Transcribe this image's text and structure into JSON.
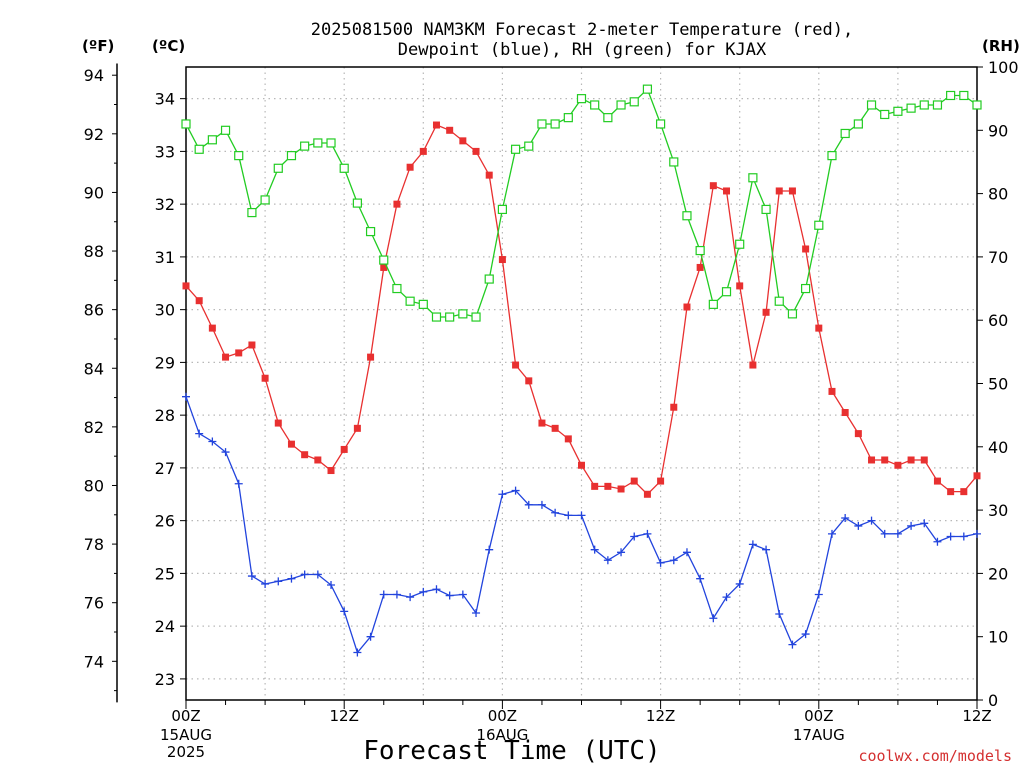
{
  "header": {
    "title_line1": "2025081500 NAM3KM Forecast 2-meter Temperature (red),",
    "title_line2": "Dewpoint (blue), RH (green) for KJAX",
    "unit_f": "(ºF)",
    "unit_c": "(ºC)",
    "unit_rh": "(RH)"
  },
  "footer": {
    "xlabel": "Forecast Time (UTC)",
    "credit": "coolwx.com/models"
  },
  "chart_data": {
    "type": "line",
    "title": "2025081500 NAM3KM Forecast 2-meter Temperature (red), Dewpoint (blue), RH (green) for KJAX",
    "xlabel": "Forecast Time (UTC)",
    "x_unit": "forecast hour",
    "x_range": [
      0,
      60
    ],
    "x_ticks": [
      {
        "hour": 0,
        "label": "00Z",
        "date": "15AUG",
        "year": "2025"
      },
      {
        "hour": 12,
        "label": "12Z",
        "date": "",
        "year": ""
      },
      {
        "hour": 24,
        "label": "00Z",
        "date": "16AUG",
        "year": ""
      },
      {
        "hour": 36,
        "label": "12Z",
        "date": "",
        "year": ""
      },
      {
        "hour": 48,
        "label": "00Z",
        "date": "17AUG",
        "year": ""
      },
      {
        "hour": 60,
        "label": "12Z",
        "date": "",
        "year": ""
      }
    ],
    "y_left_c": {
      "label": "(ºC)",
      "range": [
        22.6,
        34.6
      ],
      "ticks": [
        23,
        24,
        25,
        26,
        27,
        28,
        29,
        30,
        31,
        32,
        33,
        34
      ]
    },
    "y_left_f": {
      "label": "(ºF)",
      "ticks": [
        74,
        76,
        78,
        80,
        82,
        84,
        86,
        88,
        90,
        92,
        94
      ]
    },
    "y_right_rh": {
      "label": "(RH)",
      "range": [
        0,
        100
      ],
      "ticks": [
        0,
        10,
        20,
        30,
        40,
        50,
        60,
        70,
        80,
        90,
        100
      ]
    },
    "grid": true,
    "series": [
      {
        "name": "Temperature",
        "color": "#e83030",
        "marker": "filled-square",
        "axis": "celsius",
        "values": [
          30.45,
          30.17,
          29.65,
          29.1,
          29.18,
          29.33,
          28.7,
          27.85,
          27.45,
          27.25,
          27.15,
          26.95,
          27.35,
          27.75,
          29.1,
          30.8,
          32.0,
          32.7,
          33.0,
          33.5,
          33.4,
          33.2,
          33.0,
          32.55,
          30.95,
          28.95,
          28.65,
          27.85,
          27.75,
          27.55,
          27.05,
          26.65,
          26.65,
          26.6,
          26.75,
          26.5,
          26.75,
          28.15,
          30.05,
          30.8,
          32.35,
          32.25,
          30.45,
          28.95,
          29.95,
          32.25,
          32.25,
          31.15,
          29.65,
          28.45,
          28.05,
          27.65,
          27.15,
          27.15,
          27.05,
          27.15,
          27.15,
          26.75,
          26.55,
          26.55,
          26.85
        ]
      },
      {
        "name": "Dewpoint",
        "color": "#2244dd",
        "marker": "plus",
        "axis": "celsius",
        "values": [
          28.35,
          27.65,
          27.5,
          27.3,
          26.7,
          24.95,
          24.8,
          24.85,
          24.9,
          24.98,
          24.98,
          24.78,
          24.28,
          23.5,
          23.8,
          24.6,
          24.6,
          24.55,
          24.65,
          24.7,
          24.58,
          24.6,
          24.25,
          25.45,
          26.5,
          26.57,
          26.3,
          26.3,
          26.15,
          26.1,
          26.1,
          25.45,
          25.25,
          25.4,
          25.7,
          25.75,
          25.2,
          25.25,
          25.4,
          24.9,
          24.15,
          24.55,
          24.8,
          25.55,
          25.45,
          24.23,
          23.65,
          23.85,
          24.6,
          25.75,
          26.05,
          25.9,
          26.0,
          25.75,
          25.75,
          25.9,
          25.95,
          25.6,
          25.7,
          25.7,
          25.75
        ]
      },
      {
        "name": "RH",
        "color": "#22cc22",
        "marker": "open-square",
        "axis": "rh",
        "values": [
          91,
          87,
          88.5,
          90,
          86,
          77,
          79,
          84,
          86,
          87.5,
          88,
          88,
          84,
          78.5,
          74,
          69.5,
          65,
          63,
          62.5,
          60.5,
          60.5,
          61,
          60.5,
          66.5,
          77.5,
          87,
          87.5,
          91,
          91,
          92,
          95,
          94,
          92,
          94,
          94.5,
          96.5,
          91,
          85,
          76.5,
          71,
          62.5,
          64.5,
          72,
          82.5,
          77.5,
          63,
          61,
          65,
          75,
          86,
          89.5,
          91,
          94,
          92.5,
          93,
          93.5,
          94,
          94,
          95.5,
          95.5,
          94
        ]
      }
    ]
  }
}
